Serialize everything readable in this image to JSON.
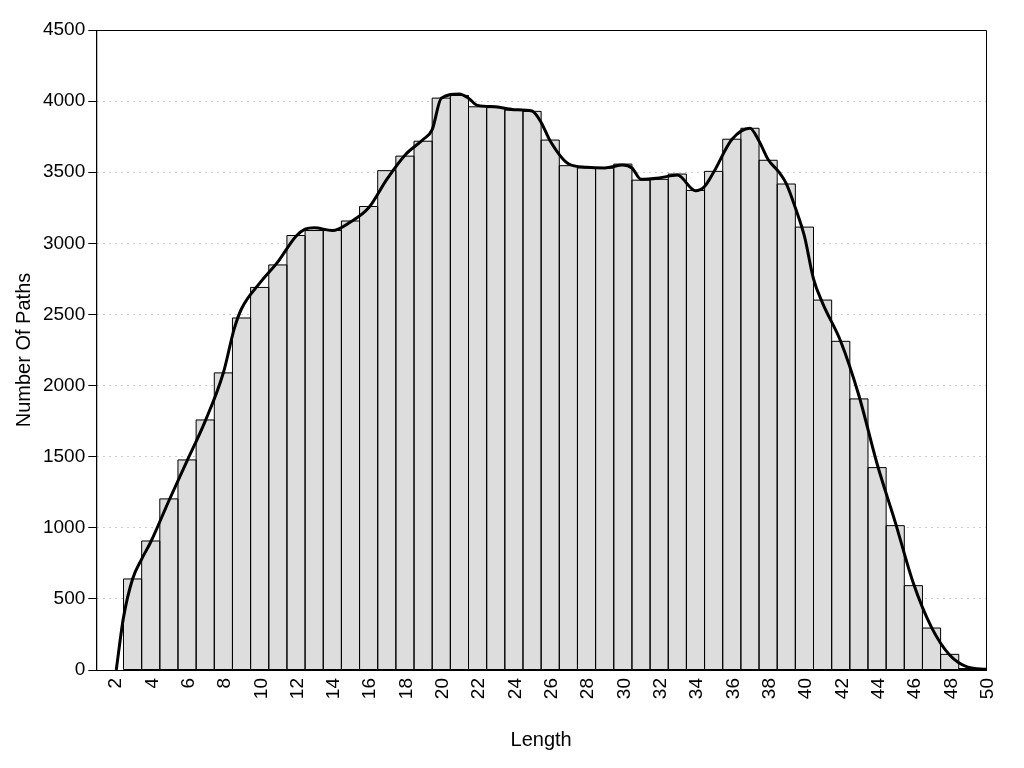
{
  "chart_data": {
    "type": "histogram",
    "xlabel": "Length",
    "ylabel": "Number Of Paths",
    "bins": [
      2.5,
      3.5,
      4.5,
      5.5,
      6.5,
      7.5,
      8.5,
      9.5,
      10.5,
      11.5,
      12.5,
      13.5,
      14.5,
      15.5,
      16.5,
      17.5,
      18.5,
      19.5,
      20.5,
      21.5,
      22.5,
      23.5,
      24.5,
      25.5,
      26.5,
      27.5,
      28.5,
      29.5,
      30.5,
      31.5,
      32.5,
      33.5,
      34.5,
      35.5,
      36.5,
      37.5,
      38.5,
      39.5,
      40.5,
      41.5,
      42.5,
      43.5,
      44.5,
      45.5,
      46.5,
      47.5,
      48.5,
      49.5
    ],
    "values": [
      640,
      907,
      1203,
      1477,
      1758,
      2089,
      2475,
      2690,
      2848,
      3055,
      3090,
      3090,
      3157,
      3259,
      3511,
      3613,
      3718,
      4021,
      4040,
      3960,
      3954,
      3936,
      3928,
      3726,
      3546,
      3530,
      3530,
      3557,
      3444,
      3450,
      3487,
      3372,
      3506,
      3732,
      3809,
      3584,
      3417,
      3114,
      2601,
      2311,
      1906,
      1423,
      1015,
      593,
      295,
      110,
      10
    ],
    "color": "#dddddd",
    "series": [
      {
        "type": "line",
        "color": "#000000",
        "x": [
          2.1,
          2.5,
          3,
          3.5,
          4,
          5,
          6,
          7,
          8,
          8.6,
          9,
          10,
          11,
          12,
          12.5,
          13,
          14,
          15,
          16,
          17,
          18,
          19,
          19.5,
          20,
          21,
          21.5,
          22,
          23,
          24,
          25,
          25.5,
          26,
          27,
          28,
          29,
          30,
          30.5,
          31,
          32,
          33,
          34,
          34.5,
          35,
          36,
          37,
          37.5,
          38,
          38.6,
          39,
          39.5,
          40,
          40.5,
          41,
          42,
          43,
          44,
          45,
          46,
          47,
          48,
          49,
          50
        ],
        "values": [
          0,
          370,
          640,
          780,
          900,
          1190,
          1470,
          1750,
          2090,
          2400,
          2540,
          2720,
          2870,
          3050,
          3100,
          3110,
          3090,
          3150,
          3250,
          3450,
          3620,
          3730,
          3800,
          4020,
          4050,
          4020,
          3970,
          3960,
          3940,
          3930,
          3850,
          3720,
          3560,
          3535,
          3530,
          3550,
          3530,
          3450,
          3460,
          3480,
          3370,
          3400,
          3500,
          3730,
          3810,
          3720,
          3590,
          3500,
          3420,
          3250,
          3050,
          2750,
          2580,
          2310,
          1930,
          1450,
          1040,
          610,
          300,
          105,
          20,
          5
        ]
      }
    ],
    "xlim": [
      1,
      50
    ],
    "xticks": [
      2,
      4,
      6,
      8,
      10,
      12,
      14,
      16,
      18,
      20,
      22,
      24,
      26,
      28,
      30,
      32,
      34,
      36,
      38,
      40,
      42,
      44,
      46,
      48,
      50
    ],
    "ylim": [
      0,
      4500
    ],
    "yticks": [
      0,
      500,
      1000,
      1500,
      2000,
      2500,
      3000,
      3500,
      4000,
      4500
    ],
    "grid": "y"
  }
}
